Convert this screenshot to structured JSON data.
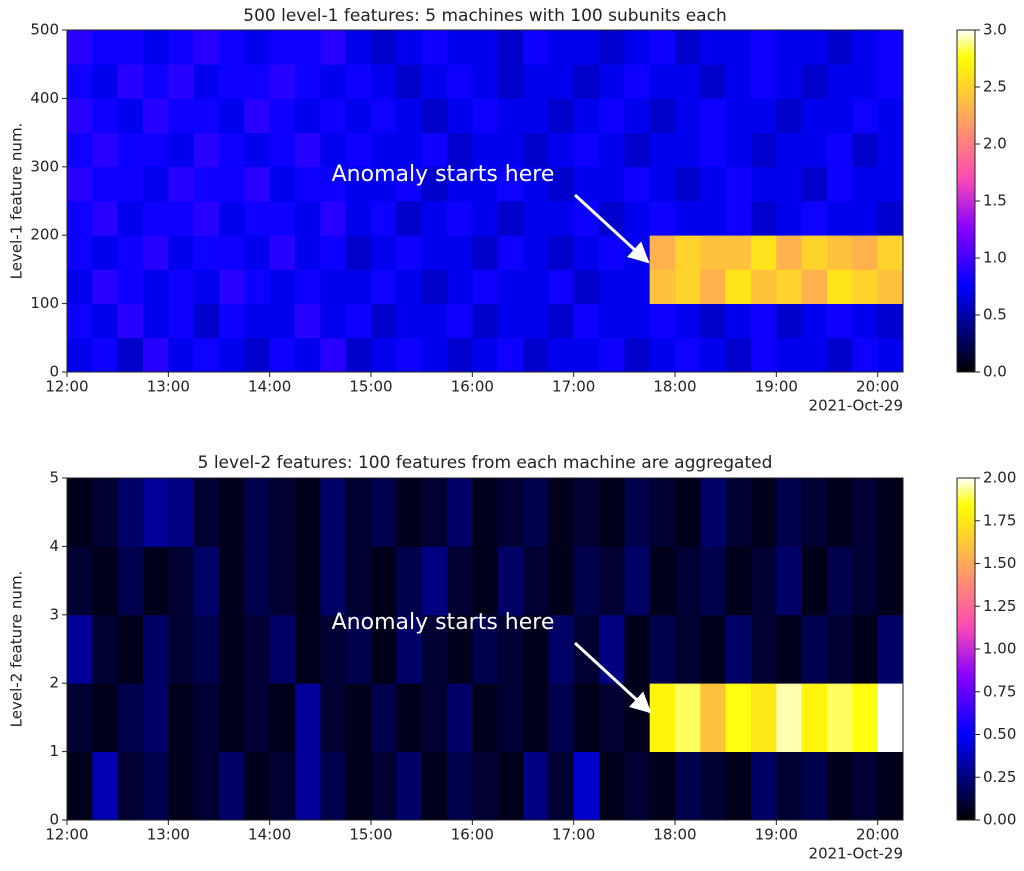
{
  "chart_data": [
    {
      "type": "heatmap",
      "title": "500 level-1 features: 5 machines with 100 subunits each",
      "ylabel": "Level-1 feature num.",
      "date_label": "2021-Oct-29",
      "annotation": "Anomaly starts here",
      "colormap": "gnuplot2",
      "x_edges": [
        12,
        12.25,
        12.5,
        12.75,
        13,
        13.25,
        13.5,
        13.75,
        14,
        14.25,
        14.5,
        14.75,
        15,
        15.25,
        15.5,
        15.75,
        16,
        16.25,
        16.5,
        16.75,
        17,
        17.25,
        17.5,
        17.75,
        18,
        18.25,
        18.5,
        18.75,
        19,
        19.25,
        19.5,
        19.75,
        20,
        20.25
      ],
      "y_edges": [
        0,
        50,
        100,
        150,
        200,
        250,
        300,
        350,
        400,
        450,
        500
      ],
      "values": [
        [
          0.7,
          0.8,
          0.6,
          0.9,
          0.7,
          0.8,
          0.7,
          0.6,
          0.8,
          0.7,
          0.9,
          0.6,
          0.7,
          0.8,
          0.7,
          0.6,
          0.7,
          0.8,
          0.6,
          0.7,
          0.7,
          0.8,
          0.6,
          0.7,
          0.8,
          0.7,
          0.6,
          0.8,
          0.7,
          0.7,
          0.6,
          0.8,
          0.7
        ],
        [
          0.8,
          0.7,
          0.9,
          0.7,
          0.8,
          0.6,
          0.8,
          0.7,
          0.7,
          0.9,
          0.7,
          0.8,
          0.6,
          0.7,
          0.7,
          0.8,
          0.6,
          0.7,
          0.7,
          0.6,
          0.8,
          0.7,
          0.7,
          0.8,
          0.7,
          0.6,
          0.7,
          0.8,
          0.6,
          0.7,
          0.8,
          0.7,
          0.6
        ],
        [
          0.7,
          0.9,
          0.8,
          0.7,
          0.8,
          0.7,
          0.9,
          0.8,
          0.7,
          0.8,
          0.7,
          0.7,
          0.8,
          0.7,
          0.6,
          0.7,
          0.8,
          0.7,
          0.7,
          0.8,
          0.6,
          0.7,
          0.7,
          2.4,
          2.5,
          2.3,
          2.6,
          2.4,
          2.5,
          2.3,
          2.6,
          2.5,
          2.4
        ],
        [
          0.8,
          0.7,
          0.8,
          0.9,
          0.7,
          0.8,
          0.8,
          0.7,
          0.9,
          0.7,
          0.8,
          0.6,
          0.7,
          0.8,
          0.7,
          0.7,
          0.6,
          0.8,
          0.7,
          0.6,
          0.7,
          0.8,
          0.7,
          2.3,
          2.5,
          2.4,
          2.4,
          2.6,
          2.3,
          2.5,
          2.4,
          2.3,
          2.5
        ],
        [
          0.8,
          0.9,
          0.7,
          0.8,
          0.8,
          0.9,
          0.7,
          0.8,
          0.8,
          0.7,
          0.9,
          0.7,
          0.8,
          0.6,
          0.7,
          0.8,
          0.7,
          0.6,
          0.7,
          0.7,
          0.8,
          0.6,
          0.7,
          0.8,
          0.7,
          0.7,
          0.8,
          0.6,
          0.7,
          0.8,
          0.7,
          0.7,
          0.6
        ],
        [
          0.9,
          0.8,
          0.8,
          0.7,
          0.9,
          0.8,
          0.8,
          0.9,
          0.7,
          0.8,
          0.8,
          0.7,
          0.7,
          0.8,
          0.6,
          0.7,
          0.7,
          0.8,
          0.7,
          0.6,
          0.7,
          0.7,
          0.8,
          0.7,
          0.6,
          0.7,
          0.8,
          0.7,
          0.7,
          0.6,
          0.8,
          0.7,
          0.7
        ],
        [
          0.8,
          0.9,
          0.8,
          0.8,
          0.7,
          0.9,
          0.8,
          0.7,
          0.8,
          0.9,
          0.7,
          0.8,
          0.7,
          0.7,
          0.8,
          0.6,
          0.7,
          0.7,
          0.6,
          0.7,
          0.8,
          0.7,
          0.6,
          0.7,
          0.7,
          0.8,
          0.7,
          0.6,
          0.7,
          0.7,
          0.8,
          0.6,
          0.7
        ],
        [
          0.9,
          0.8,
          0.7,
          0.9,
          0.8,
          0.8,
          0.7,
          0.9,
          0.8,
          0.7,
          0.8,
          0.7,
          0.8,
          0.7,
          0.6,
          0.7,
          0.8,
          0.7,
          0.7,
          0.6,
          0.7,
          0.8,
          0.7,
          0.6,
          0.7,
          0.8,
          0.7,
          0.7,
          0.6,
          0.7,
          0.7,
          0.8,
          0.7
        ],
        [
          0.8,
          0.7,
          0.9,
          0.8,
          0.9,
          0.7,
          0.8,
          0.8,
          0.9,
          0.8,
          0.7,
          0.8,
          0.7,
          0.6,
          0.7,
          0.8,
          0.7,
          0.6,
          0.7,
          0.7,
          0.6,
          0.7,
          0.8,
          0.7,
          0.7,
          0.6,
          0.7,
          0.8,
          0.7,
          0.6,
          0.7,
          0.7,
          0.8
        ],
        [
          0.9,
          0.8,
          0.8,
          0.7,
          0.8,
          0.9,
          0.8,
          0.7,
          0.8,
          0.8,
          0.9,
          0.7,
          0.6,
          0.7,
          0.8,
          0.7,
          0.7,
          0.6,
          0.8,
          0.7,
          0.7,
          0.6,
          0.7,
          0.8,
          0.6,
          0.7,
          0.7,
          0.8,
          0.7,
          0.7,
          0.6,
          0.7,
          0.8
        ]
      ],
      "xlim": [
        12,
        20.25
      ],
      "xticks": [
        {
          "value": 12,
          "label": "12:00"
        },
        {
          "value": 13,
          "label": "13:00"
        },
        {
          "value": 14,
          "label": "14:00"
        },
        {
          "value": 15,
          "label": "15:00"
        },
        {
          "value": 16,
          "label": "16:00"
        },
        {
          "value": 17,
          "label": "17:00"
        },
        {
          "value": 18,
          "label": "18:00"
        },
        {
          "value": 19,
          "label": "19:00"
        },
        {
          "value": 20,
          "label": "20:00"
        }
      ],
      "ylim": [
        0,
        500
      ],
      "yticks": [
        0,
        100,
        200,
        300,
        400,
        500
      ],
      "clim": [
        0,
        3
      ],
      "cticks": [
        {
          "value": 0,
          "label": "0.0"
        },
        {
          "value": 0.5,
          "label": "0.5"
        },
        {
          "value": 1,
          "label": "1.0"
        },
        {
          "value": 1.5,
          "label": "1.5"
        },
        {
          "value": 2,
          "label": "2.0"
        },
        {
          "value": 2.5,
          "label": "2.5"
        },
        {
          "value": 3,
          "label": "3.0"
        }
      ]
    },
    {
      "type": "heatmap",
      "title": "5 level-2 features:  100 features from each machine are aggregated",
      "ylabel": "Level-2 feature num.",
      "date_label": "2021-Oct-29",
      "annotation": "Anomaly starts here",
      "colormap": "gnuplot2",
      "x_edges": [
        12,
        12.25,
        12.5,
        12.75,
        13,
        13.25,
        13.5,
        13.75,
        14,
        14.25,
        14.5,
        14.75,
        15,
        15.25,
        15.5,
        15.75,
        16,
        16.25,
        16.5,
        16.75,
        17,
        17.25,
        17.5,
        17.75,
        18,
        18.25,
        18.5,
        18.75,
        19,
        19.25,
        19.5,
        19.75,
        20,
        20.25
      ],
      "y_edges": [
        0,
        1,
        2,
        3,
        4,
        5
      ],
      "values": [
        [
          0.05,
          0.35,
          0.1,
          0.15,
          0.05,
          0.1,
          0.2,
          0.05,
          0.1,
          0.3,
          0.15,
          0.05,
          0.1,
          0.2,
          0.05,
          0.15,
          0.1,
          0.05,
          0.25,
          0.1,
          0.4,
          0.05,
          0.1,
          0.05,
          0.15,
          0.1,
          0.05,
          0.2,
          0.1,
          0.15,
          0.05,
          0.1,
          0.05
        ],
        [
          0.1,
          0.05,
          0.15,
          0.2,
          0.05,
          0.1,
          0.05,
          0.1,
          0.05,
          0.3,
          0.1,
          0.05,
          0.15,
          0.05,
          0.1,
          0.2,
          0.05,
          0.1,
          0.05,
          0.15,
          0.05,
          0.1,
          0.05,
          1.8,
          1.9,
          1.6,
          1.85,
          1.75,
          1.95,
          1.8,
          1.9,
          1.85,
          2.0
        ],
        [
          0.3,
          0.1,
          0.05,
          0.2,
          0.1,
          0.15,
          0.05,
          0.1,
          0.2,
          0.05,
          0.1,
          0.15,
          0.05,
          0.2,
          0.1,
          0.05,
          0.15,
          0.1,
          0.05,
          0.2,
          0.1,
          0.25,
          0.05,
          0.15,
          0.1,
          0.05,
          0.2,
          0.1,
          0.05,
          0.15,
          0.1,
          0.05,
          0.2
        ],
        [
          0.1,
          0.05,
          0.15,
          0.05,
          0.1,
          0.2,
          0.05,
          0.15,
          0.1,
          0.05,
          0.2,
          0.1,
          0.05,
          0.15,
          0.25,
          0.1,
          0.05,
          0.2,
          0.1,
          0.05,
          0.15,
          0.1,
          0.2,
          0.05,
          0.1,
          0.15,
          0.05,
          0.1,
          0.2,
          0.05,
          0.15,
          0.1,
          0.05
        ],
        [
          0.05,
          0.1,
          0.2,
          0.3,
          0.25,
          0.1,
          0.05,
          0.15,
          0.1,
          0.05,
          0.2,
          0.1,
          0.15,
          0.05,
          0.1,
          0.2,
          0.05,
          0.1,
          0.15,
          0.05,
          0.1,
          0.05,
          0.15,
          0.1,
          0.05,
          0.2,
          0.1,
          0.05,
          0.15,
          0.1,
          0.05,
          0.1,
          0.05
        ]
      ],
      "xlim": [
        12,
        20.25
      ],
      "xticks": [
        {
          "value": 12,
          "label": "12:00"
        },
        {
          "value": 13,
          "label": "13:00"
        },
        {
          "value": 14,
          "label": "14:00"
        },
        {
          "value": 15,
          "label": "15:00"
        },
        {
          "value": 16,
          "label": "16:00"
        },
        {
          "value": 17,
          "label": "17:00"
        },
        {
          "value": 18,
          "label": "18:00"
        },
        {
          "value": 19,
          "label": "19:00"
        },
        {
          "value": 20,
          "label": "20:00"
        }
      ],
      "ylim": [
        0,
        5
      ],
      "yticks": [
        0,
        1,
        2,
        3,
        4,
        5
      ],
      "clim": [
        0,
        2
      ],
      "cticks": [
        {
          "value": 0,
          "label": "0.00"
        },
        {
          "value": 0.25,
          "label": "0.25"
        },
        {
          "value": 0.5,
          "label": "0.50"
        },
        {
          "value": 0.75,
          "label": "0.75"
        },
        {
          "value": 1,
          "label": "1.00"
        },
        {
          "value": 1.25,
          "label": "1.25"
        },
        {
          "value": 1.5,
          "label": "1.50"
        },
        {
          "value": 1.75,
          "label": "1.75"
        },
        {
          "value": 2,
          "label": "2.00"
        }
      ]
    }
  ]
}
